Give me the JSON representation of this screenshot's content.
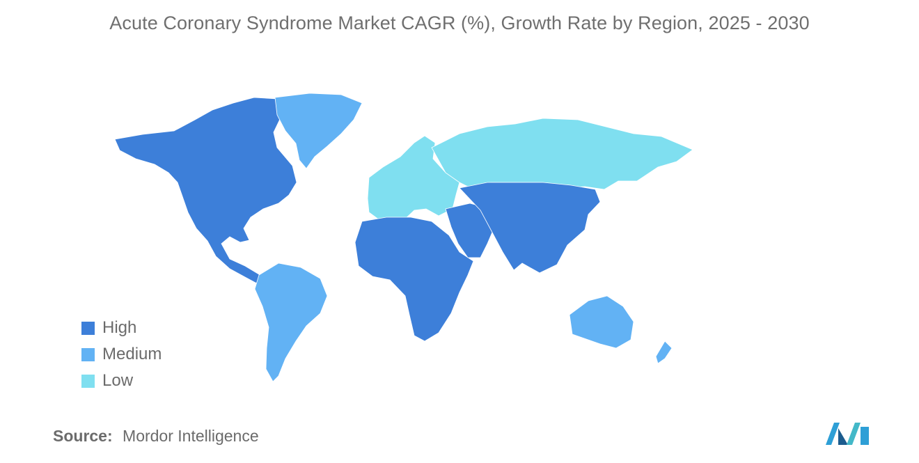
{
  "title": "Acute Coronary Syndrome Market CAGR (%), Growth Rate by Region, 2025 - 2030",
  "colors": {
    "high": "#3d7fd9",
    "medium": "#62b2f4",
    "low": "#7fdff0",
    "no_data": "#a6a6a6"
  },
  "legend": [
    {
      "label": "High",
      "level": "high"
    },
    {
      "label": "Medium",
      "level": "medium"
    },
    {
      "label": "Low",
      "level": "low"
    }
  ],
  "regions": [
    {
      "name": "North America",
      "level": "high"
    },
    {
      "name": "Greenland",
      "level": "medium"
    },
    {
      "name": "South America",
      "level": "medium"
    },
    {
      "name": "Europe",
      "level": "low"
    },
    {
      "name": "Russia",
      "level": "low"
    },
    {
      "name": "Africa",
      "level": "high"
    },
    {
      "name": "Middle East",
      "level": "high"
    },
    {
      "name": "Asia",
      "level": "high"
    },
    {
      "name": "Australia",
      "level": "medium"
    },
    {
      "name": "New Zealand",
      "level": "medium"
    }
  ],
  "source": {
    "label": "Source:",
    "value": "Mordor Intelligence"
  }
}
